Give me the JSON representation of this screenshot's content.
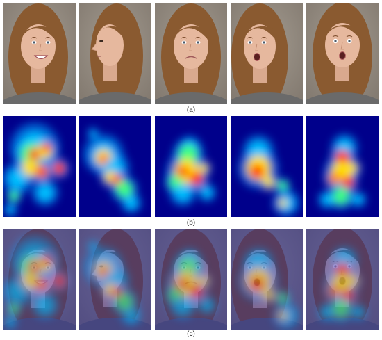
{
  "figure": {
    "captions": {
      "a": "(a)",
      "b": "(b)",
      "c": "(c)"
    },
    "panels": [
      {
        "id": "1",
        "expression": "happy",
        "pose": "three-quarter-left"
      },
      {
        "id": "2",
        "expression": "neutral",
        "pose": "profile-left"
      },
      {
        "id": "3",
        "expression": "sad",
        "pose": "frontal"
      },
      {
        "id": "4",
        "expression": "surprised",
        "pose": "three-quarter-left"
      },
      {
        "id": "5",
        "expression": "surprised",
        "pose": "frontal"
      }
    ],
    "colors": {
      "photo_background": "#8b8378",
      "hair": "#8a5a30",
      "skin": "#e6b89e",
      "shirt": "#6a6a6a",
      "heatmap_background": "#00008b"
    }
  }
}
